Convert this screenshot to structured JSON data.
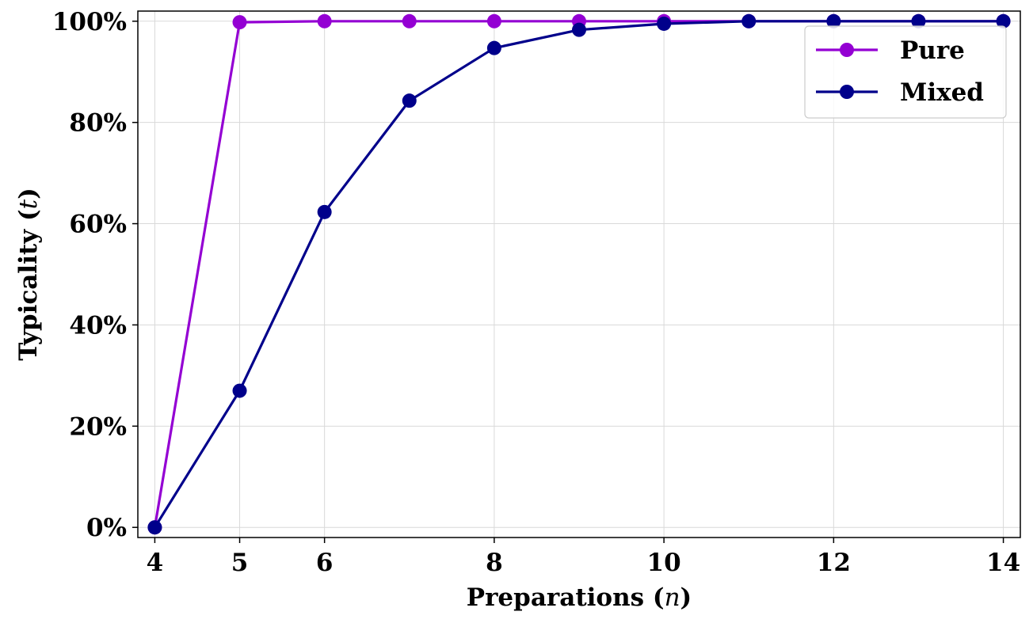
{
  "chart_data": {
    "type": "line",
    "title": "",
    "xlabel": "Preparations (",
    "xlabel_var": "n",
    "xlabel_end": ")",
    "ylabel": "Typicality (",
    "ylabel_var": "t",
    "ylabel_end": ")",
    "xlim": [
      3.8,
      14.2
    ],
    "ylim": [
      -2,
      102
    ],
    "x_ticks": [
      4,
      5,
      6,
      8,
      10,
      12,
      14
    ],
    "x_tick_labels": [
      "4",
      "5",
      "6",
      "8",
      "10",
      "12",
      "14"
    ],
    "y_ticks": [
      0,
      20,
      40,
      60,
      80,
      100
    ],
    "y_tick_labels": [
      "0%",
      "20%",
      "40%",
      "60%",
      "80%",
      "100%"
    ],
    "grid": true,
    "legend_position": "top-right",
    "x": [
      4,
      5,
      6,
      7,
      8,
      9,
      10,
      11,
      12,
      13,
      14
    ],
    "series": [
      {
        "name": "Pure",
        "color": "#9400d3",
        "values": [
          0,
          99.8,
          100,
          100,
          100,
          100,
          100,
          100,
          100,
          100,
          100
        ]
      },
      {
        "name": "Mixed",
        "color": "#00008b",
        "values": [
          0,
          27,
          62.3,
          84.3,
          94.7,
          98.3,
          99.5,
          100,
          100,
          100,
          100
        ]
      }
    ]
  }
}
